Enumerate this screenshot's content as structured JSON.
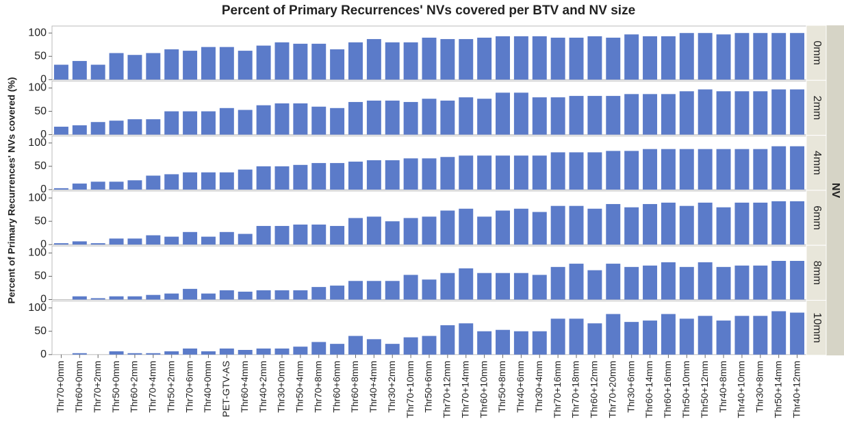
{
  "chart_data": {
    "type": "bar",
    "title": "Percent of Primary Recurrences' NVs covered per BTV and NV size",
    "ylabel": "Percent of Primary Recurrences' NVs covered (%)",
    "facet_label": "NV",
    "color": "#5b7bc9",
    "categories": [
      "Thr70+0mm",
      "Thr60+0mm",
      "Thr70+2mm",
      "Thr50+0mm",
      "Thr60+2mm",
      "Thr70+4mm",
      "Thr50+2mm",
      "Thr70+6mm",
      "Thr40+0mm",
      "PET-GTV-AS",
      "Thr60+4mm",
      "Thr40+2mm",
      "Thr30+0mm",
      "Thr50+4mm",
      "Thr70+8mm",
      "Thr60+6mm",
      "Thr60+8mm",
      "Thr40+4mm",
      "Thr30+2mm",
      "Thr70+10mm",
      "Thr50+6mm",
      "Thr70+12mm",
      "Thr70+14mm",
      "Thr60+10mm",
      "Thr50+8mm",
      "Thr40+6mm",
      "Thr30+4mm",
      "Thr70+16mm",
      "Thr70+18mm",
      "Thr60+12mm",
      "Thr70+20mm",
      "Thr30+6mm",
      "Thr60+14mm",
      "Thr60+16mm",
      "Thr50+10mm",
      "Thr50+12mm",
      "Thr40+8mm",
      "Thr40+10mm",
      "Thr30+8mm",
      "Thr50+14mm",
      "Thr40+12mm"
    ],
    "ylim": [
      0,
      115
    ],
    "yticks": [
      0,
      50,
      100
    ],
    "panels": [
      {
        "name": "0mm",
        "values": [
          32,
          40,
          32,
          57,
          53,
          57,
          65,
          62,
          70,
          70,
          62,
          73,
          80,
          77,
          77,
          65,
          80,
          87,
          80,
          80,
          90,
          87,
          87,
          90,
          93,
          93,
          93,
          90,
          90,
          93,
          90,
          97,
          93,
          93,
          100,
          100,
          97,
          100,
          100,
          100,
          100
        ]
      },
      {
        "name": "2mm",
        "values": [
          17,
          20,
          27,
          30,
          33,
          33,
          50,
          50,
          50,
          57,
          53,
          63,
          67,
          67,
          60,
          57,
          70,
          73,
          73,
          70,
          77,
          73,
          80,
          77,
          90,
          90,
          80,
          80,
          83,
          83,
          83,
          87,
          87,
          87,
          93,
          97,
          93,
          93,
          93,
          97,
          97
        ]
      },
      {
        "name": "4mm",
        "values": [
          3,
          13,
          17,
          17,
          20,
          30,
          33,
          37,
          37,
          37,
          43,
          50,
          50,
          53,
          57,
          57,
          60,
          63,
          63,
          67,
          67,
          70,
          73,
          73,
          73,
          73,
          73,
          80,
          80,
          80,
          83,
          83,
          87,
          87,
          87,
          87,
          87,
          87,
          87,
          93,
          93
        ]
      },
      {
        "name": "6mm",
        "values": [
          3,
          7,
          3,
          13,
          13,
          20,
          17,
          27,
          17,
          27,
          23,
          40,
          40,
          43,
          43,
          40,
          57,
          60,
          50,
          57,
          60,
          73,
          77,
          60,
          73,
          77,
          70,
          83,
          83,
          77,
          87,
          80,
          87,
          90,
          83,
          90,
          80,
          90,
          90,
          93,
          93
        ]
      },
      {
        "name": "8mm",
        "values": [
          0,
          7,
          3,
          7,
          7,
          10,
          13,
          23,
          13,
          20,
          17,
          20,
          20,
          20,
          27,
          30,
          40,
          40,
          40,
          53,
          43,
          57,
          67,
          57,
          57,
          57,
          53,
          70,
          77,
          63,
          77,
          70,
          73,
          80,
          70,
          80,
          70,
          73,
          73,
          83,
          83
        ]
      },
      {
        "name": "10mm",
        "values": [
          0,
          3,
          0,
          7,
          3,
          3,
          7,
          13,
          7,
          13,
          10,
          13,
          13,
          17,
          27,
          23,
          40,
          33,
          23,
          37,
          40,
          63,
          67,
          50,
          53,
          50,
          50,
          77,
          77,
          67,
          87,
          70,
          73,
          87,
          77,
          83,
          73,
          83,
          83,
          93,
          90
        ]
      }
    ]
  }
}
